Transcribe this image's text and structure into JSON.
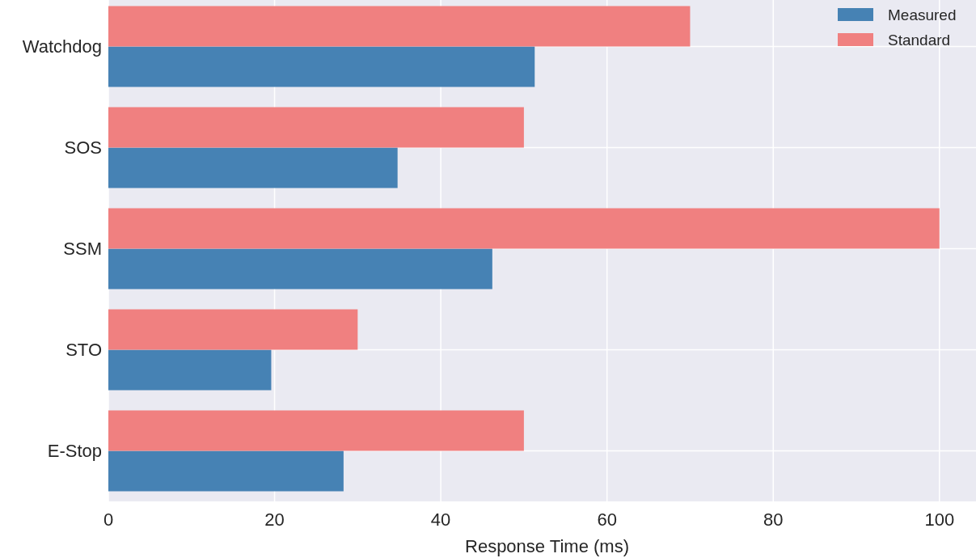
{
  "chart_data": {
    "type": "bar",
    "orientation": "horizontal",
    "xlabel": "Response Time (ms)",
    "categories": [
      "Watchdog",
      "SOS",
      "SSM",
      "STO",
      "E-Stop"
    ],
    "series": [
      {
        "name": "Measured",
        "color": "#4682b4",
        "values": [
          51.3,
          34.8,
          46.2,
          19.6,
          28.3
        ]
      },
      {
        "name": "Standard",
        "color": "#f08080",
        "values": [
          70,
          50,
          100,
          30,
          50
        ]
      }
    ],
    "xlim": [
      0,
      104.4
    ],
    "xticks": [
      0,
      20,
      40,
      60,
      80,
      100
    ],
    "grid": true,
    "legend": "top right"
  }
}
